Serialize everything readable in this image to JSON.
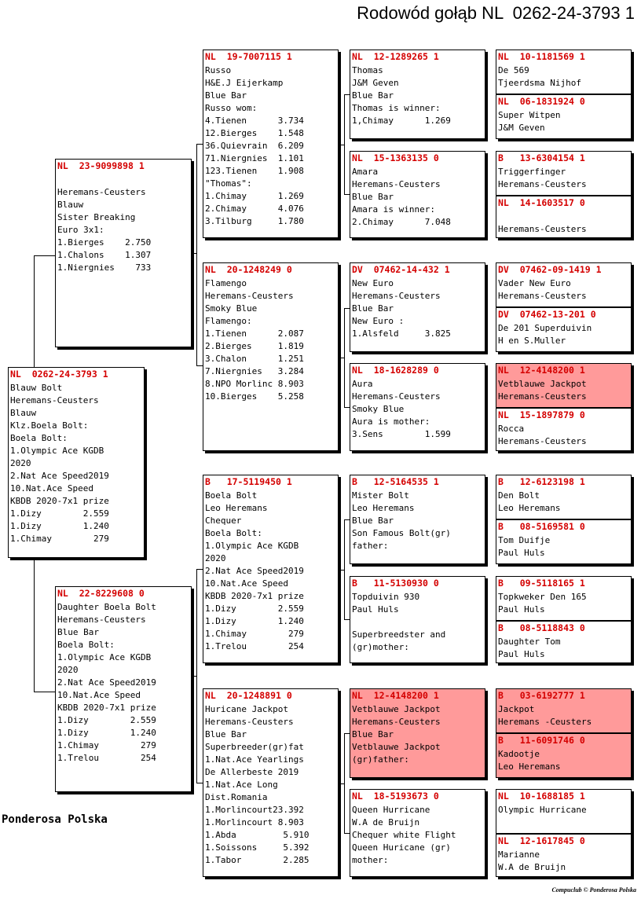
{
  "title": "Rodowód gołąb NL  0262-24-3793 1",
  "brand": "Ponderosa Polska",
  "copyright": "Compuclub © Ponderosa Polska",
  "highlight_color": "#ff9a9a",
  "ring_color": "#d40000",
  "cards": [
    {
      "id": "subject",
      "ring": "NL  0262-24-3793 1",
      "highlight": false,
      "lines": [
        "Blauw Bolt",
        "Heremans-Ceusters",
        "Blauw",
        "Klz.Boela Bolt:",
        "Boela Bolt:",
        "1.Olympic Ace KGDB",
        "2020",
        "2.Nat Ace Speed2019",
        "10.Nat.Ace Speed",
        "KBDB 2020-7x1 prize",
        "1.Dizy        2.559",
        "1.Dizy        1.240",
        "1.Chimay        279"
      ]
    },
    {
      "id": "sire",
      "ring": "NL  23-9099898 1",
      "highlight": false,
      "lines": [
        "",
        "Heremans-Ceusters",
        "Blauw",
        "Sister Breaking",
        "Euro 3x1:",
        "1.Bierges    2.750",
        "1.Chalons    1.307",
        "1.Niergnies    733"
      ]
    },
    {
      "id": "dam",
      "ring": "NL  22-8229608 0",
      "highlight": false,
      "lines": [
        "Daughter Boela Bolt",
        "Heremans-Ceusters",
        "Blue Bar",
        "Boela Bolt:",
        "1.Olympic Ace KGDB",
        "2020",
        "2.Nat Ace Speed2019",
        "10.Nat.Ace Speed",
        "KBDB 2020-7x1 prize",
        "1.Dizy        2.559",
        "1.Dizy        1.240",
        "1.Chimay        279",
        "1.Trelou        254"
      ]
    },
    {
      "id": "ss",
      "ring": "NL  19-7007115 1",
      "highlight": false,
      "lines": [
        "Russo",
        "H&E.J Eijerkamp",
        "Blue Bar",
        "Russo wom:",
        "4.Tienen      3.734",
        "12.Bierges    1.548",
        "36.Quievrain  6.209",
        "71.Niergnies  1.101",
        "123.Tienen    1.908",
        "\"Thomas\":",
        "1.Chimay      1.269",
        "2.Chimay      4.076",
        "3.Tilburg     1.780"
      ]
    },
    {
      "id": "sd",
      "ring": "NL  20-1248249 0",
      "highlight": false,
      "lines": [
        "Flamengo",
        "Heremans-Ceusters",
        "Smoky Blue",
        "Flamengo:",
        "1.Tienen      2.087",
        "2.Bierges     1.819",
        "3.Chalon      1.251",
        "7.Niergnies   3.284",
        "8.NPO Morlinc 8.903",
        "10.Bierges    5.258"
      ]
    },
    {
      "id": "ds",
      "ring": "B   17-5119450 1",
      "highlight": false,
      "lines": [
        "Boela Bolt",
        "Leo Heremans",
        "Chequer",
        "Boela Bolt:",
        "1.Olympic Ace KGDB",
        "2020",
        "2.Nat Ace Speed2019",
        "10.Nat.Ace Speed",
        "KBDB 2020-7x1 prize",
        "1.Dizy        2.559",
        "1.Dizy        1.240",
        "1.Chimay        279",
        "1.Trelou        254"
      ]
    },
    {
      "id": "dd",
      "ring": "NL  20-1248891 0",
      "highlight": false,
      "lines": [
        "Huricane Jackpot",
        "Heremans-Ceusters",
        "Blue Bar",
        "Superbreeder(gr)fat",
        "1.Nat.Ace Yearlings",
        "De Allerbeste 2019",
        "1.Nat.Ace Long",
        "Dist.Romania",
        "1.Morlincourt23.392",
        "1.Morlincourt 8.903",
        "1.Abda         5.910",
        "1.Soissons     5.392",
        "1.Tabor        2.285"
      ]
    },
    {
      "id": "sss",
      "ring": "NL  12-1289265 1",
      "highlight": false,
      "lines": [
        "Thomas",
        "J&M Geven",
        "Blue Bar",
        "Thomas is winner:",
        "1,Chimay      1.269"
      ]
    },
    {
      "id": "ssd",
      "ring": "NL  15-1363135 0",
      "highlight": false,
      "lines": [
        "Amara",
        "Heremans-Ceusters",
        "Blue Bar",
        "Amara is winner:",
        "2.Chimay      7.048"
      ]
    },
    {
      "id": "sds",
      "ring": "DV  07462-14-432 1",
      "highlight": false,
      "lines": [
        "New Euro",
        "Heremans-Ceusters",
        "Blue Bar",
        "New Euro :",
        "1.Alsfeld     3.825"
      ]
    },
    {
      "id": "sdd",
      "ring": "NL  18-1628289 0",
      "highlight": false,
      "lines": [
        "Aura",
        "Heremans-Ceusters",
        "Smoky Blue",
        "Aura is mother:",
        "3.Sens        1.599"
      ]
    },
    {
      "id": "dss",
      "ring": "B   12-5164535 1",
      "highlight": false,
      "lines": [
        "Mister Bolt",
        "Leo Heremans",
        "Blue Bar",
        "Son Famous Bolt(gr)",
        "father:"
      ]
    },
    {
      "id": "dsd",
      "ring": "B   11-5130930 0",
      "highlight": false,
      "lines": [
        "Topduivin 930",
        "Paul Huls",
        "",
        "Superbreedster and",
        "(gr)mother:"
      ]
    },
    {
      "id": "dds",
      "ring": "NL  12-4148200 1",
      "highlight": true,
      "lines": [
        "Vetblauwe Jackpot",
        "Heremans-Ceusters",
        "Blue Bar",
        "Vetblauwe Jackpot",
        "(gr)father:"
      ]
    },
    {
      "id": "ddd",
      "ring": "NL  18-5193673 0",
      "highlight": false,
      "lines": [
        "Queen Hurricane",
        "W.A de Bruijn",
        "Chequer white Flight",
        "Queen Huricane (gr)",
        "mother:"
      ]
    },
    {
      "id": "g1",
      "ring": "NL  10-1181569 1",
      "highlight": false,
      "lines": [
        "De 569",
        "Tjeerdsma Nijhof"
      ]
    },
    {
      "id": "g2",
      "ring": "NL  06-1831924 0",
      "highlight": false,
      "lines": [
        "Super Witpen",
        "J&M Geven"
      ]
    },
    {
      "id": "g3",
      "ring": "B   13-6304154 1",
      "highlight": false,
      "lines": [
        "Triggerfinger",
        "Heremans-Ceusters"
      ]
    },
    {
      "id": "g4",
      "ring": "NL  14-1603517 0",
      "highlight": false,
      "lines": [
        "",
        "Heremans-Ceusters"
      ]
    },
    {
      "id": "g5",
      "ring": "DV  07462-09-1419 1",
      "highlight": false,
      "lines": [
        "Vader New Euro",
        "Heremans-Ceusters"
      ]
    },
    {
      "id": "g6",
      "ring": "DV  07462-13-201 0",
      "highlight": false,
      "lines": [
        "De 201 Superduivin",
        "H en S.Muller"
      ]
    },
    {
      "id": "g7",
      "ring": "NL  12-4148200 1",
      "highlight": true,
      "lines": [
        "Vetblauwe Jackpot",
        "Heremans-Ceusters"
      ]
    },
    {
      "id": "g8",
      "ring": "NL  15-1897879 0",
      "highlight": false,
      "lines": [
        "Rocca",
        "Heremans-Ceusters"
      ]
    },
    {
      "id": "g9",
      "ring": "B   12-6123198 1",
      "highlight": false,
      "lines": [
        "Den Bolt",
        "Leo Heremans"
      ]
    },
    {
      "id": "g10",
      "ring": "B   08-5169581 0",
      "highlight": false,
      "lines": [
        "Tom Duifje",
        "Paul Huls"
      ]
    },
    {
      "id": "g11",
      "ring": "B   09-5118165 1",
      "highlight": false,
      "lines": [
        "Topkweker Den 165",
        "Paul Huls"
      ]
    },
    {
      "id": "g12",
      "ring": "B   08-5118843 0",
      "highlight": false,
      "lines": [
        "Daughter Tom",
        "Paul Huls"
      ]
    },
    {
      "id": "g13",
      "ring": "B   03-6192777 1",
      "highlight": true,
      "lines": [
        "Jackpot",
        "Heremans -Ceusters"
      ]
    },
    {
      "id": "g14",
      "ring": "B   11-6091746 0",
      "highlight": true,
      "lines": [
        "Kadootje",
        "Leo Heremans"
      ]
    },
    {
      "id": "g15",
      "ring": "NL  10-1688185 1",
      "highlight": false,
      "lines": [
        "Olympic Hurricane",
        ""
      ]
    },
    {
      "id": "g16",
      "ring": "NL  12-1617845 0",
      "highlight": false,
      "lines": [
        "Marianne",
        "W.A de Bruijn"
      ]
    }
  ]
}
